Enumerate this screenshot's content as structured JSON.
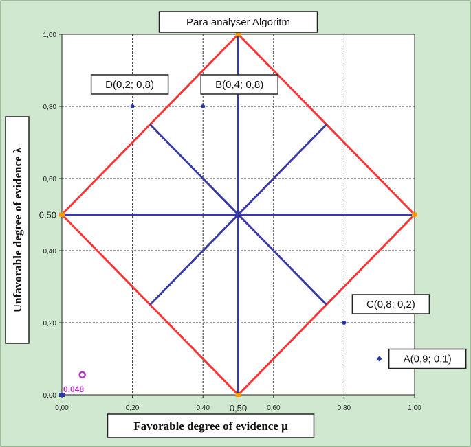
{
  "chart_data": {
    "type": "scatter",
    "title": "Para analyser Algoritm",
    "xlabel": "Favorable degree of evidence μ",
    "ylabel": "Unfavorable degree of evidence λ",
    "xlim": [
      0,
      1
    ],
    "ylim": [
      0,
      1
    ],
    "grid": true,
    "x_ticks": [
      "0,00",
      "0,20",
      "0,40",
      "0,60",
      "0,80",
      "1,00"
    ],
    "y_ticks": [
      "0,00",
      "0,20",
      "0,40",
      "0,60",
      "0,80",
      "1,00"
    ],
    "extra_x_tick": "0,50",
    "extra_y_tick": "0,50",
    "points": [
      {
        "label": "A(0,9; 0,1)",
        "x": 0.9,
        "y": 0.1
      },
      {
        "label": "B(0,4; 0,8)",
        "x": 0.4,
        "y": 0.8
      },
      {
        "label": "C(0,8; 0,2)",
        "x": 0.8,
        "y": 0.2
      },
      {
        "label": "D(0,2; 0,8)",
        "x": 0.2,
        "y": 0.8
      }
    ],
    "extra_marker": {
      "label": "0,048",
      "x": 0.05,
      "y": 0.05
    },
    "lines": [
      {
        "color": "#ff3333",
        "points": [
          [
            0,
            0.5
          ],
          [
            0.5,
            1
          ],
          [
            1,
            0.5
          ],
          [
            0.5,
            0
          ],
          [
            0,
            0.5
          ]
        ]
      },
      {
        "color": "#3a3aa6",
        "points": [
          [
            0.5,
            0
          ],
          [
            0.5,
            1
          ]
        ]
      },
      {
        "color": "#3a3aa6",
        "points": [
          [
            0,
            0.5
          ],
          [
            1,
            0.5
          ]
        ]
      },
      {
        "color": "#3a3aa6",
        "points": [
          [
            0.25,
            0.25
          ],
          [
            0.75,
            0.75
          ]
        ]
      },
      {
        "color": "#3a3aa6",
        "points": [
          [
            0.25,
            0.75
          ],
          [
            0.75,
            0.25
          ]
        ]
      }
    ],
    "colors": {
      "diamond": "#ff3333",
      "cross": "#3a3aa6",
      "points": "#2a3aa8",
      "magenta": "#b23cc0",
      "vertex": "#ff9900"
    }
  }
}
